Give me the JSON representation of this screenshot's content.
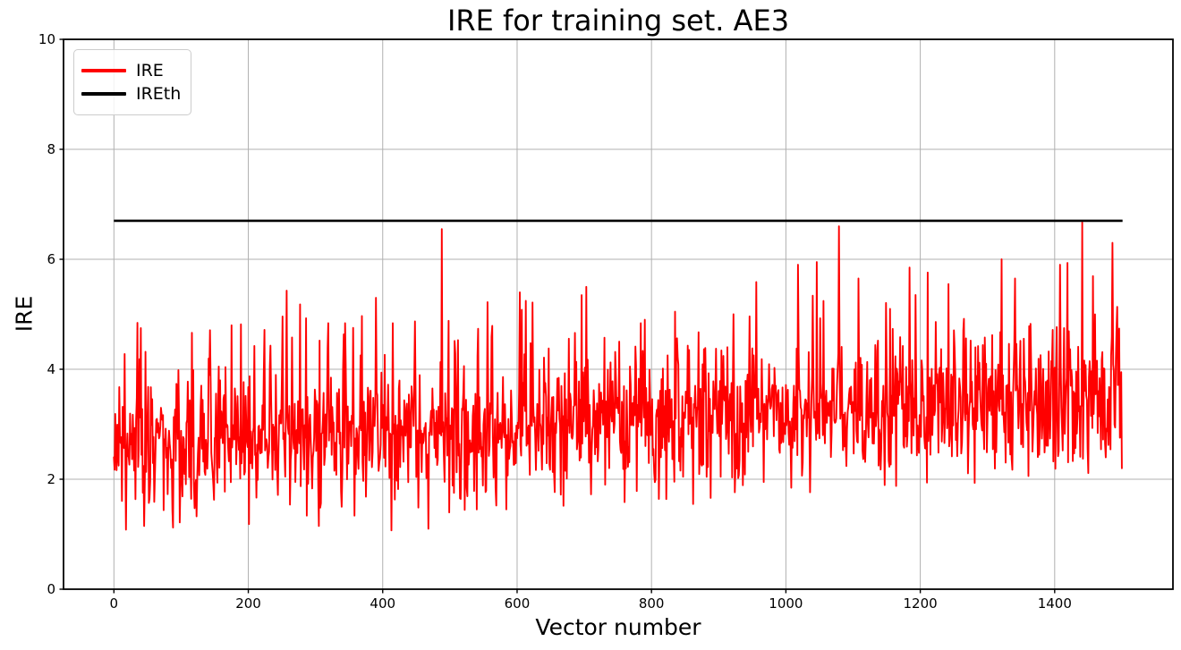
{
  "figure": {
    "title": "IRE for training set. AE3",
    "xlabel": "Vector number",
    "ylabel": "IRE",
    "background_color": "#ffffff"
  },
  "legend": {
    "position": "upper-left",
    "entries": [
      {
        "label": "IRE",
        "color": "#ff0000"
      },
      {
        "label": "IREth",
        "color": "#000000"
      }
    ]
  },
  "chart_data": {
    "type": "line",
    "title": "IRE for training set. AE3",
    "xlabel": "Vector number",
    "ylabel": "IRE",
    "xlim": [
      -75,
      1576
    ],
    "ylim": [
      0,
      10
    ],
    "xticks": [
      0,
      200,
      400,
      600,
      800,
      1000,
      1200,
      1400
    ],
    "yticks": [
      0,
      2,
      4,
      6,
      8,
      10
    ],
    "grid": true,
    "grid_color": "#b0b0b0",
    "spine_color": "#000000",
    "tick_label_color": "#000000",
    "series": [
      {
        "name": "IRE",
        "color": "#ff0000",
        "line_width": 1.9,
        "kind": "noisy_line",
        "x_start": 0,
        "x_end": 1500,
        "n_points": 1501,
        "generator": {
          "seed": 20,
          "mean_start": 2.6,
          "mean_end": 3.45,
          "sigma_start": 0.58,
          "sigma_end": 0.66,
          "floor_start": 1.05,
          "floor_end": 2.05,
          "cap_start": 4.9,
          "cap_end": 6.0,
          "tall_peak_prob": 0.045,
          "tall_peak_base": 1.0
        },
        "notable_peaks": [
          [
            40,
            4.75
          ],
          [
            175,
            4.8
          ],
          [
            257,
            5.43
          ],
          [
            277,
            5.18
          ],
          [
            390,
            5.3
          ],
          [
            488,
            6.55
          ],
          [
            556,
            5.22
          ],
          [
            604,
            5.4
          ],
          [
            703,
            5.5
          ],
          [
            790,
            4.9
          ],
          [
            922,
            5.0
          ],
          [
            1018,
            5.9
          ],
          [
            1046,
            5.95
          ],
          [
            1079,
            6.6
          ],
          [
            1108,
            5.65
          ],
          [
            1155,
            5.1
          ],
          [
            1184,
            5.85
          ],
          [
            1211,
            5.76
          ],
          [
            1242,
            5.55
          ],
          [
            1321,
            6.0
          ],
          [
            1341,
            5.65
          ],
          [
            1408,
            5.9
          ],
          [
            1441,
            6.67
          ],
          [
            1486,
            6.3
          ]
        ],
        "notable_dips": [
          [
            0,
            2.4
          ],
          [
            88,
            1.12
          ],
          [
            305,
            1.15
          ],
          [
            413,
            1.07
          ],
          [
            468,
            1.1
          ],
          [
            540,
            1.45
          ],
          [
            862,
            1.55
          ],
          [
            1500,
            2.2
          ]
        ]
      },
      {
        "name": "IREth",
        "color": "#000000",
        "line_width": 2.6,
        "kind": "hline",
        "value": 6.7,
        "x_start": 0,
        "x_end": 1501
      }
    ]
  }
}
